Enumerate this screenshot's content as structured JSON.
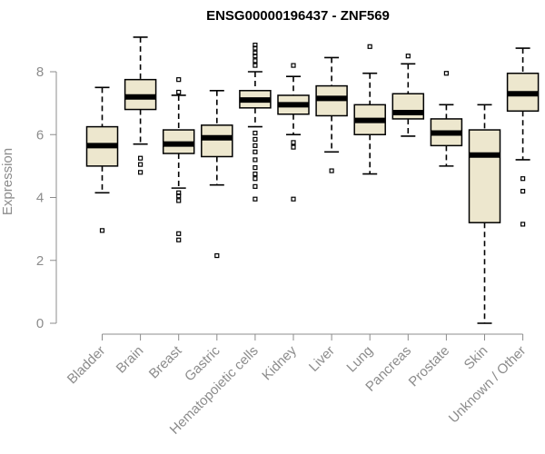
{
  "chart_data": {
    "type": "boxplot",
    "title": "ENSG00000196437 - ZNF569",
    "xlabel": "",
    "ylabel": "Expression",
    "ylim": [
      0,
      9.2
    ],
    "yticks": [
      0,
      2,
      4,
      6,
      8
    ],
    "grid": false,
    "box_fill": "#ede7ce",
    "box_stroke": "#000000",
    "categories": [
      "Bladder",
      "Brain",
      "Breast",
      "Gastric",
      "Hematopoietic cells",
      "Kidney",
      "Liver",
      "Lung",
      "Pancreas",
      "Prostate",
      "Skin",
      "Unknown / Other"
    ],
    "boxes": [
      {
        "name": "Bladder",
        "whisker_low": 4.15,
        "q1": 5.0,
        "median": 5.65,
        "q3": 6.25,
        "whisker_high": 7.5,
        "outliers": [
          2.95
        ]
      },
      {
        "name": "Brain",
        "whisker_low": 5.7,
        "q1": 6.8,
        "median": 7.2,
        "q3": 7.75,
        "whisker_high": 9.1,
        "outliers": [
          5.25,
          5.05,
          4.8
        ]
      },
      {
        "name": "Breast",
        "whisker_low": 4.3,
        "q1": 5.4,
        "median": 5.7,
        "q3": 6.15,
        "whisker_high": 7.25,
        "outliers": [
          7.75,
          7.35,
          4.15,
          4.05,
          3.9,
          2.85,
          2.65
        ]
      },
      {
        "name": "Gastric",
        "whisker_low": 4.4,
        "q1": 5.3,
        "median": 5.9,
        "q3": 6.3,
        "whisker_high": 7.4,
        "outliers": [
          2.15
        ]
      },
      {
        "name": "Hematopoietic cells",
        "whisker_low": 6.25,
        "q1": 6.85,
        "median": 7.1,
        "q3": 7.4,
        "whisker_high": 8.0,
        "outliers": [
          8.85,
          8.75,
          8.6,
          8.5,
          8.35,
          8.2,
          6.05,
          5.85,
          5.65,
          5.45,
          5.2,
          4.95,
          4.75,
          4.6,
          4.35,
          3.95
        ]
      },
      {
        "name": "Kidney",
        "whisker_low": 6.0,
        "q1": 6.65,
        "median": 6.95,
        "q3": 7.25,
        "whisker_high": 7.85,
        "outliers": [
          8.2,
          5.75,
          5.6,
          3.95
        ]
      },
      {
        "name": "Liver",
        "whisker_low": 5.45,
        "q1": 6.6,
        "median": 7.15,
        "q3": 7.55,
        "whisker_high": 8.45,
        "outliers": [
          4.85
        ]
      },
      {
        "name": "Lung",
        "whisker_low": 4.75,
        "q1": 6.0,
        "median": 6.45,
        "q3": 6.95,
        "whisker_high": 7.95,
        "outliers": [
          8.8
        ]
      },
      {
        "name": "Pancreas",
        "whisker_low": 5.95,
        "q1": 6.5,
        "median": 6.7,
        "q3": 7.3,
        "whisker_high": 8.25,
        "outliers": [
          8.5
        ]
      },
      {
        "name": "Prostate",
        "whisker_low": 5.0,
        "q1": 5.65,
        "median": 6.05,
        "q3": 6.5,
        "whisker_high": 6.95,
        "outliers": [
          7.95
        ]
      },
      {
        "name": "Skin",
        "whisker_low": 0.0,
        "q1": 3.2,
        "median": 5.35,
        "q3": 6.15,
        "whisker_high": 6.95,
        "outliers": []
      },
      {
        "name": "Unknown / Other",
        "whisker_low": 5.2,
        "q1": 6.75,
        "median": 7.3,
        "q3": 7.95,
        "whisker_high": 8.75,
        "outliers": [
          4.6,
          4.2,
          3.15
        ]
      }
    ]
  }
}
